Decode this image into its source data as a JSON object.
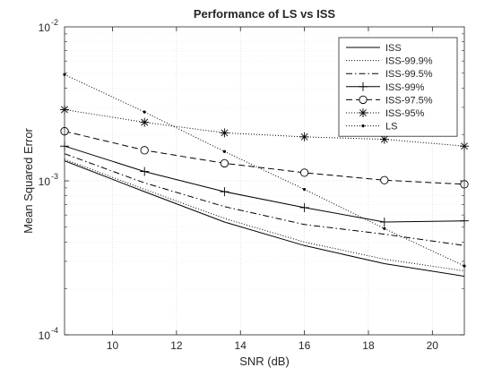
{
  "chart_data": {
    "type": "line",
    "title": "Performance of LS vs ISS",
    "xlabel": "SNR (dB)",
    "ylabel": "Mean Squared Error",
    "xlim": [
      8.5,
      21
    ],
    "ylim": [
      0.0001,
      0.01
    ],
    "yscale": "log",
    "grid": true,
    "legend_position": "top-right",
    "x_ticks": [
      10,
      12,
      14,
      16,
      18,
      20
    ],
    "x_tick_labels": [
      "10",
      "12",
      "14",
      "16",
      "18",
      "20"
    ],
    "y_ticks": [
      0.0001,
      0.001,
      0.01
    ],
    "y_tick_labels": [
      {
        "base": "10",
        "exp": "-4"
      },
      {
        "base": "10",
        "exp": "-3"
      },
      {
        "base": "10",
        "exp": "-2"
      }
    ],
    "series": [
      {
        "name": "ISS",
        "style": "solid",
        "marker": "none",
        "color": "#000000",
        "x": [
          8.5,
          11,
          13.5,
          16,
          18.5,
          21
        ],
        "y": [
          0.00135,
          0.00085,
          0.00054,
          0.00038,
          0.00029,
          0.00024
        ]
      },
      {
        "name": "ISS-99.9%",
        "style": "dotted",
        "marker": "none",
        "color": "#000000",
        "x": [
          8.5,
          11,
          13.5,
          16,
          18.5,
          21
        ],
        "y": [
          0.00138,
          0.00088,
          0.00057,
          0.0004,
          0.00031,
          0.00026
        ]
      },
      {
        "name": "ISS-99.5%",
        "style": "dashdot",
        "marker": "none",
        "color": "#000000",
        "x": [
          8.5,
          11,
          13.5,
          16,
          18.5,
          21
        ],
        "y": [
          0.0015,
          0.00097,
          0.00068,
          0.00052,
          0.00045,
          0.00038
        ]
      },
      {
        "name": "ISS-99%",
        "style": "solid",
        "marker": "plus",
        "color": "#000000",
        "x": [
          8.5,
          11,
          13.5,
          16,
          18.5,
          21
        ],
        "y": [
          0.00168,
          0.00115,
          0.00085,
          0.00067,
          0.00054,
          0.00055
        ]
      },
      {
        "name": "ISS-97.5%",
        "style": "dashed",
        "marker": "circle",
        "color": "#000000",
        "x": [
          8.5,
          11,
          13.5,
          16,
          18.5,
          21
        ],
        "y": [
          0.0021,
          0.00158,
          0.0013,
          0.00113,
          0.00101,
          0.00095
        ]
      },
      {
        "name": "ISS-95%",
        "style": "dotted",
        "marker": "asterisk",
        "color": "#000000",
        "x": [
          8.5,
          11,
          13.5,
          16,
          18.5,
          21
        ],
        "y": [
          0.0029,
          0.0024,
          0.00205,
          0.00193,
          0.00186,
          0.00168
        ]
      },
      {
        "name": "LS",
        "style": "dotted",
        "marker": "dot",
        "color": "#000000",
        "x": [
          8.5,
          11,
          13.5,
          16,
          18.5,
          21
        ],
        "y": [
          0.0049,
          0.0028,
          0.00155,
          0.00088,
          0.00049,
          0.00028
        ]
      }
    ]
  }
}
